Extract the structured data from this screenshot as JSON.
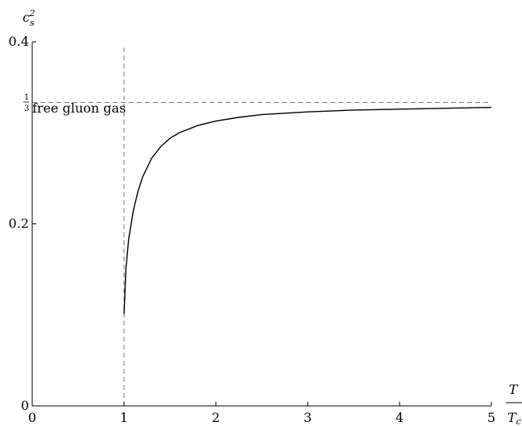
{
  "chart_data": {
    "type": "line",
    "ylabel": {
      "base": "c",
      "sub": "s",
      "sup": "2"
    },
    "xlabel": {
      "numerator": "T",
      "denominator_base": "T",
      "denominator_sub": "c"
    },
    "xlim": [
      0,
      5
    ],
    "ylim": [
      0,
      0.4
    ],
    "x_ticks": [
      0,
      1,
      2,
      3,
      4,
      5
    ],
    "y_ticks": [
      {
        "value": 0,
        "label": "0"
      },
      {
        "value": 0.2,
        "label": "0.2"
      },
      {
        "value": 0.4,
        "label": "0.4"
      }
    ],
    "grid": false,
    "reference_lines": [
      {
        "orientation": "horizontal",
        "value": 0.3333,
        "style": "dashed",
        "label": {
          "numerator": "1",
          "denominator": "3",
          "text": "free gluon gas"
        }
      },
      {
        "orientation": "vertical",
        "value": 1,
        "style": "dashed"
      }
    ],
    "series": [
      {
        "x": [
          1.0,
          1.02,
          1.05,
          1.1,
          1.15,
          1.2,
          1.3,
          1.4,
          1.5,
          1.6,
          1.8,
          2.0,
          2.25,
          2.5,
          3.0,
          3.5,
          4.0,
          4.5,
          5.0
        ],
        "y": [
          0.101,
          0.15,
          0.183,
          0.214,
          0.235,
          0.251,
          0.272,
          0.285,
          0.294,
          0.3,
          0.308,
          0.313,
          0.317,
          0.32,
          0.323,
          0.325,
          0.326,
          0.327,
          0.328
        ]
      }
    ]
  }
}
